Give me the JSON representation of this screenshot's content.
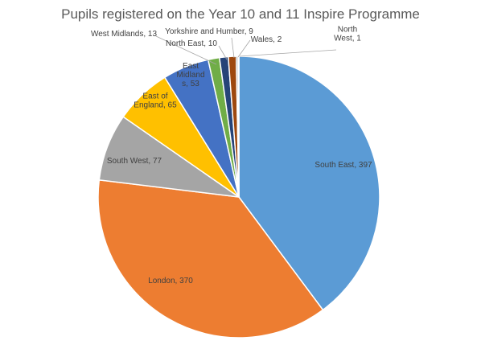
{
  "chart_data": {
    "type": "pie",
    "title": "Pupils registered on the Year 10 and 11 Inspire Programme",
    "slices": [
      {
        "label": "South East",
        "value": 397,
        "color": "#5b9bd5",
        "text_color": "#404040",
        "display": [
          "South East, 397"
        ]
      },
      {
        "label": "London",
        "value": 370,
        "color": "#ed7d31",
        "text_color": "#404040",
        "display": [
          "London, 370"
        ]
      },
      {
        "label": "South West",
        "value": 77,
        "color": "#a5a5a5",
        "text_color": "#404040",
        "display": [
          "South West, 77"
        ]
      },
      {
        "label": "East of England",
        "value": 65,
        "color": "#ffc000",
        "text_color": "#404040",
        "display": [
          "East of",
          "England, 65"
        ]
      },
      {
        "label": "East Midlands",
        "value": 53,
        "color": "#4472c4",
        "text_color": "#404040",
        "display": [
          "East",
          "Midland",
          "s, 53"
        ]
      },
      {
        "label": "West Midlands",
        "value": 13,
        "color": "#70ad47",
        "text_color": "#404040",
        "display": [
          "West Midlands, 13"
        ]
      },
      {
        "label": "North East",
        "value": 10,
        "color": "#264478",
        "text_color": "#404040",
        "display": [
          "North East, 10"
        ]
      },
      {
        "label": "Yorkshire and Humber",
        "value": 9,
        "color": "#9e480e",
        "text_color": "#404040",
        "display": [
          "Yorkshire and Humber, 9"
        ]
      },
      {
        "label": "Wales",
        "value": 2,
        "color": "#636363",
        "text_color": "#404040",
        "display": [
          "Wales, 2"
        ]
      },
      {
        "label": "North West",
        "value": 1,
        "color": "#997300",
        "text_color": "#404040",
        "display": [
          "North",
          "West, 1"
        ]
      }
    ],
    "start_angle": "12 o'clock",
    "direction": "clockwise",
    "legend": "none"
  }
}
